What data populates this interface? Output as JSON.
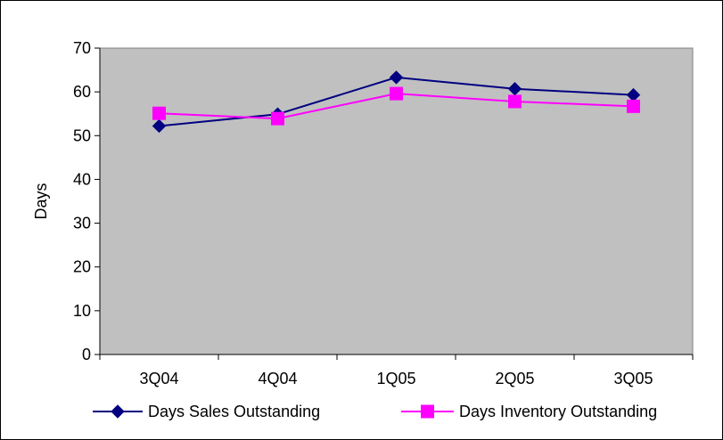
{
  "chart_data": {
    "type": "line",
    "title": "",
    "xlabel": "",
    "ylabel": "Days",
    "categories": [
      "3Q04",
      "4Q04",
      "1Q05",
      "2Q05",
      "3Q05"
    ],
    "ylim": [
      0,
      70
    ],
    "yticks": [
      0,
      10,
      20,
      30,
      40,
      50,
      60,
      70
    ],
    "grid": false,
    "plot_background": "#c0c0c0",
    "legend_position": "bottom",
    "series": [
      {
        "name": "Days Sales Outstanding",
        "values": [
          52.2,
          54.9,
          63.3,
          60.7,
          59.3
        ],
        "color": "#000080",
        "marker": "diamond"
      },
      {
        "name": "Days Inventory Outstanding",
        "values": [
          55.1,
          53.9,
          59.6,
          57.8,
          56.7
        ],
        "color": "#ff00ff",
        "marker": "square"
      }
    ]
  }
}
